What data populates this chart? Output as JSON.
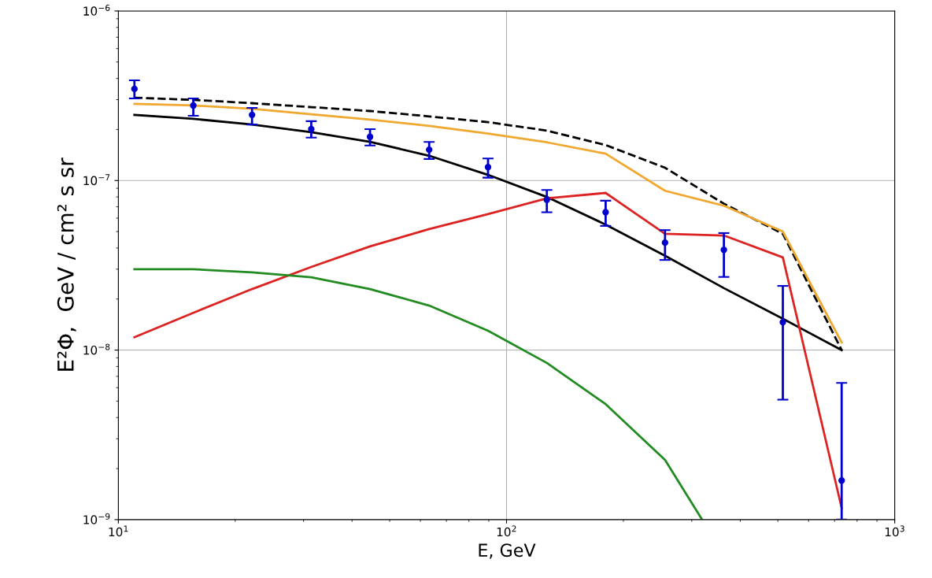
{
  "chart_data": {
    "type": "line",
    "xlabel": "E, GeV",
    "ylabel": "E²Φ,  GeV / cm² s sr",
    "log": "xy",
    "grid": true,
    "legend": false,
    "xlim": [
      10,
      1000
    ],
    "ylim": [
      1e-09,
      1e-06
    ],
    "xticks": [
      {
        "value": 10,
        "label": "10$^{1}$"
      },
      {
        "value": 100,
        "label": "10$^{2}$"
      },
      {
        "value": 1000,
        "label": "10$^{3}$"
      }
    ],
    "yticks": [
      {
        "value": 1e-09,
        "label": "10$^{−9}$"
      },
      {
        "value": 1e-08,
        "label": "10$^{−8}$"
      },
      {
        "value": 1e-07,
        "label": "10$^{−7}$"
      },
      {
        "value": 1e-06,
        "label": "10$^{−6}$"
      }
    ],
    "x": [
      11,
      15.6,
      22.1,
      31.4,
      44.5,
      63.2,
      89.6,
      127,
      180,
      256,
      363,
      515,
      730
    ],
    "series": [
      {
        "color": "#000000",
        "line_style": "dashed",
        "marker": "none",
        "values": [
          3.08e-07,
          2.99e-07,
          2.86e-07,
          2.71e-07,
          2.57e-07,
          2.39e-07,
          2.21e-07,
          1.97e-07,
          1.62e-07,
          1.19e-07,
          7.3e-08,
          4.85e-08,
          1e-08
        ]
      },
      {
        "color": "#f0a830",
        "line_style": "solid",
        "marker": "none",
        "values": [
          2.83e-07,
          2.77e-07,
          2.65e-07,
          2.46e-07,
          2.29e-07,
          2.1e-07,
          1.89e-07,
          1.68e-07,
          1.44e-07,
          8.7e-08,
          7.1e-08,
          5e-08,
          1.11e-08
        ]
      },
      {
        "color": "#000000",
        "line_style": "solid",
        "marker": "none",
        "values": [
          2.44e-07,
          2.31e-07,
          2.14e-07,
          1.93e-07,
          1.69e-07,
          1.4e-07,
          1.08e-07,
          8e-08,
          5.5e-08,
          3.6e-08,
          2.32e-08,
          1.53e-08,
          1e-08
        ]
      },
      {
        "color": "#dd2222",
        "line_style": "solid",
        "marker": "none",
        "values": [
          1.19e-08,
          1.66e-08,
          2.29e-08,
          3.09e-08,
          4.09e-08,
          5.17e-08,
          6.34e-08,
          7.85e-08,
          8.45e-08,
          4.85e-08,
          4.74e-08,
          3.52e-08,
          1.17e-09
        ]
      },
      {
        "color": "#228b22",
        "line_style": "solid",
        "marker": "none",
        "x": [
          11,
          15.6,
          22.1,
          31.4,
          44.5,
          63.2,
          89.6,
          127,
          180,
          256,
          319
        ],
        "values": [
          3e-08,
          3e-08,
          2.87e-08,
          2.69e-08,
          2.29e-08,
          1.83e-08,
          1.3e-08,
          8.4e-09,
          4.8e-09,
          2.25e-09,
          1e-09
        ]
      },
      {
        "type": "scatter",
        "color": "#0000cc",
        "marker": "circle",
        "values": [
          3.47e-07,
          2.77e-07,
          2.44e-07,
          2.01e-07,
          1.81e-07,
          1.52e-07,
          1.2e-07,
          7.7e-08,
          6.5e-08,
          4.3e-08,
          3.9e-08,
          1.46e-08,
          1.7e-09
        ],
        "errors": [
          [
            3.05e-07,
            3.9e-07
          ],
          [
            2.41e-07,
            3.05e-07
          ],
          [
            2.14e-07,
            2.68e-07
          ],
          [
            1.79e-07,
            2.24e-07
          ],
          [
            1.61e-07,
            2.01e-07
          ],
          [
            1.34e-07,
            1.69e-07
          ],
          [
            1.04e-07,
            1.35e-07
          ],
          [
            6.5e-08,
            8.8e-08
          ],
          [
            5.4e-08,
            7.6e-08
          ],
          [
            3.4e-08,
            5.1e-08
          ],
          [
            2.7e-08,
            4.9e-08
          ],
          [
            5.1e-09,
            2.39e-08
          ],
          [
            1e-09,
            6.4e-09
          ]
        ]
      }
    ]
  }
}
